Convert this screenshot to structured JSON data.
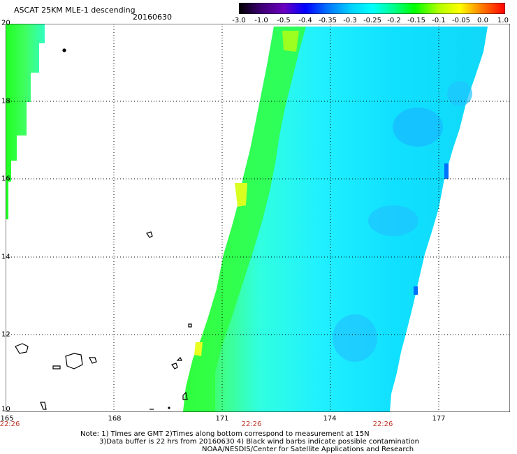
{
  "header": {
    "title": "ASCAT 25KM MLE-1 descending",
    "date": "20160630"
  },
  "colorbar": {
    "labels": [
      "-3.0",
      "-1.0",
      "-0.5",
      "-0.4",
      "-0.35",
      "-0.3",
      "-0.25",
      "-0.2",
      "-0.15",
      "-0.1",
      "-0.05",
      "0.0",
      "1.0"
    ],
    "colors": [
      "#000000",
      "#5a00a0",
      "#0000ff",
      "#0070ff",
      "#00b8ff",
      "#00ffff",
      "#00ff90",
      "#00ff00",
      "#90ff00",
      "#ffff00",
      "#ffa000",
      "#ff5000",
      "#ff0000"
    ]
  },
  "map": {
    "lon_range": [
      165,
      179
    ],
    "lat_range": [
      10,
      20
    ],
    "y_ticks": [
      "20",
      "18",
      "16",
      "14",
      "12",
      "10"
    ],
    "x_ticks": [
      "165",
      "168",
      "171",
      "174",
      "177"
    ],
    "time_labels": [
      "22:26",
      "22:26",
      "22:26"
    ]
  },
  "notes": {
    "line1": "Note: 1) Times are GMT 2)Times along bottom correspond to measurement at 15N",
    "line2": "3)Data buffer is 22 hrs from 20160630 4) Black wind barbs indicate possible contamination",
    "line3": "NOAA/NESDIS/Center for Satellite Applications and Research"
  }
}
